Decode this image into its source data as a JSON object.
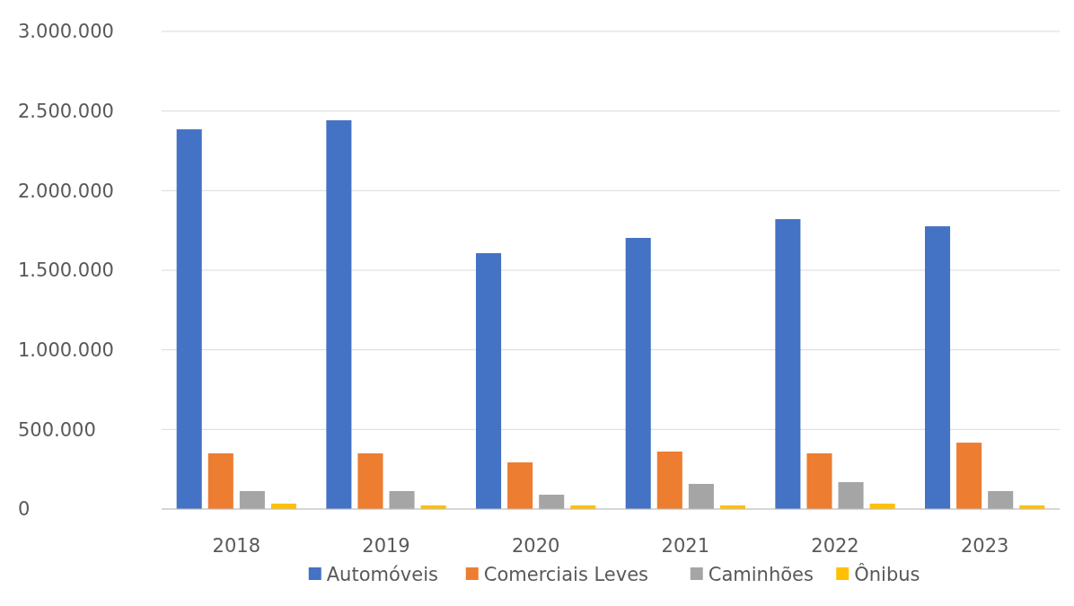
{
  "chart_data": {
    "type": "bar",
    "categories": [
      "2018",
      "2019",
      "2020",
      "2021",
      "2022",
      "2023"
    ],
    "series": [
      {
        "name": "Automóveis",
        "color": "#4472c4",
        "values": [
          2385000,
          2442000,
          1607000,
          1703000,
          1821000,
          1776000
        ]
      },
      {
        "name": "Comerciais Leves",
        "color": "#ed7d31",
        "values": [
          350000,
          350000,
          293000,
          361000,
          350000,
          417000
        ]
      },
      {
        "name": "Caminhões",
        "color": "#a5a5a5",
        "values": [
          113000,
          113000,
          90000,
          158000,
          169000,
          113000
        ]
      },
      {
        "name": "Ônibus",
        "color": "#ffc000",
        "values": [
          34000,
          23000,
          23000,
          23000,
          34000,
          23000
        ]
      }
    ],
    "ylim": [
      0,
      3000000
    ],
    "yticks": [
      0,
      {
        "value": 500000,
        "label": "500.000"
      },
      {
        "value": 1000000,
        "label": "1.000.000"
      },
      {
        "value": 1500000,
        "label": "1.500.000"
      },
      {
        "value": 2000000,
        "label": "2.000.000"
      },
      {
        "value": 2500000,
        "label": "2.500.000"
      },
      {
        "value": 3000000,
        "label": "3.000.000"
      }
    ],
    "grid": "y",
    "legend": "bottom"
  }
}
